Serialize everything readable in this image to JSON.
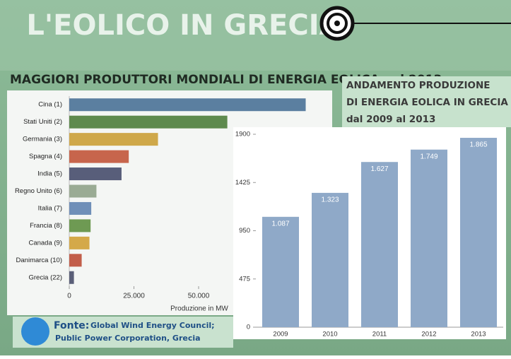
{
  "header": {
    "title": "L'EOLICO IN GRECIA"
  },
  "chart_data": [
    {
      "type": "bar",
      "orientation": "horizontal",
      "title": "MAGGIORI PRODUTTORI MONDIALI DI ENERGIA EOLICA nel 2013",
      "x_label": "Produzione in MW",
      "categories": [
        "Cina (1)",
        "Stati Uniti (2)",
        "Germania (3)",
        "Spagna (4)",
        "India (5)",
        "Regno Unito (6)",
        "Italia (7)",
        "Francia (8)",
        "Canada (9)",
        "Danimarca (10)",
        "Grecia (22)"
      ],
      "values": [
        91400,
        61100,
        34300,
        23000,
        20200,
        10500,
        8500,
        8250,
        7800,
        4800,
        1800
      ],
      "colors": [
        "#5b7fa0",
        "#5e8a4e",
        "#cfa84a",
        "#c7654c",
        "#585e7a",
        "#9aab94",
        "#6f8fb8",
        "#6e9a53",
        "#d4a949",
        "#c25e4a",
        "#5a5f78"
      ],
      "xlim": [
        0,
        100000
      ],
      "xticks": [
        0,
        {
          "value": 25000,
          "label": "25.000"
        },
        {
          "value": 50000,
          "label": "50.000"
        }
      ],
      "grid": false
    },
    {
      "type": "bar",
      "orientation": "vertical",
      "title": [
        "ANDAMENTO PRODUZIONE",
        "DI ENERGIA EOLICA IN GRECIA",
        "dal 2009 al 2013"
      ],
      "categories": [
        "2009",
        "2010",
        "2011",
        "2012",
        "2013"
      ],
      "values": [
        1087,
        1323,
        1627,
        1749,
        1865
      ],
      "value_labels": [
        "1.087",
        "1.323",
        "1.627",
        "1.749",
        "1.865"
      ],
      "color": "#8fa9c8",
      "ylim": [
        0,
        1900
      ],
      "yticks": [
        0,
        475,
        950,
        1425,
        1900
      ],
      "grid": false
    }
  ],
  "source": {
    "label": "Fonte:",
    "lines": [
      "Global Wind Energy Council;",
      "Public Power Corporation, Grecia"
    ]
  }
}
